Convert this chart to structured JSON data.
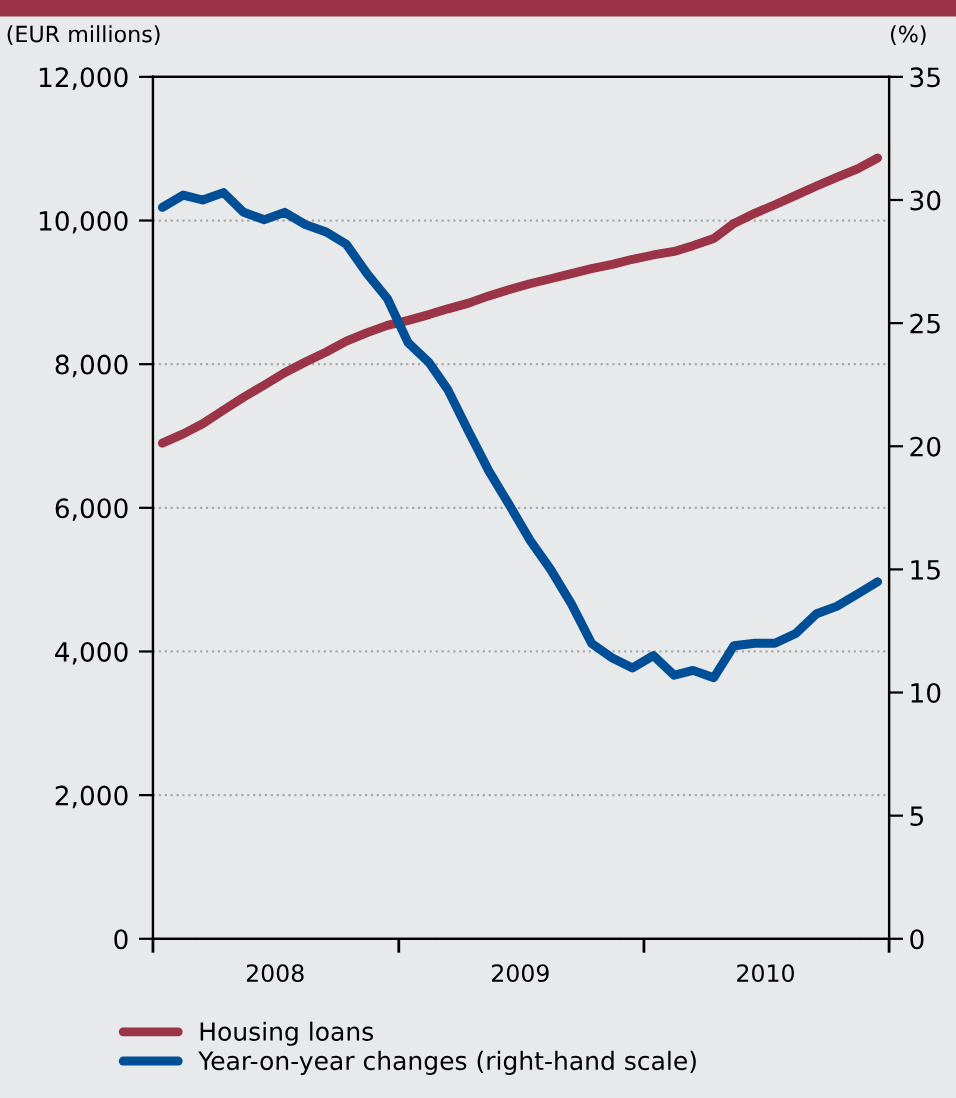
{
  "chart_data": {
    "type": "line",
    "ylabel": "(EUR millions)",
    "y2label": "(%)",
    "x": [
      "2008-01-15",
      "2008-02-15",
      "2008-03-15",
      "2008-04-15",
      "2008-05-15",
      "2008-06-15",
      "2008-07-15",
      "2008-08-15",
      "2008-09-15",
      "2008-10-15",
      "2008-11-15",
      "2008-12-15",
      "2009-01-15",
      "2009-02-15",
      "2009-03-15",
      "2009-04-15",
      "2009-05-15",
      "2009-06-15",
      "2009-07-15",
      "2009-08-15",
      "2009-09-15",
      "2009-10-15",
      "2009-11-15",
      "2009-12-15",
      "2010-01-15",
      "2010-02-15",
      "2010-03-15",
      "2010-04-15",
      "2010-05-15",
      "2010-06-15",
      "2010-07-15",
      "2010-08-15",
      "2010-09-15",
      "2010-10-15",
      "2010-11-15",
      "2010-12-15"
    ],
    "series": [
      {
        "name": "Housing loans",
        "color": "#9b3446",
        "values": [
          6900,
          7030,
          7170,
          7360,
          7540,
          7710,
          7880,
          8030,
          8170,
          8320,
          8440,
          8540,
          8610,
          8690,
          8770,
          8850,
          8950,
          9040,
          9120,
          9190,
          9260,
          9330,
          9390,
          9460,
          9520,
          9570,
          9650,
          9750,
          9960,
          10100,
          10220,
          10350,
          10480,
          10600,
          10720,
          10870
        ]
      },
      {
        "name": "Year-on-year changes (right-hand scale)",
        "color": "#004e96",
        "axis": "y2",
        "values": [
          29.7,
          30.2,
          30.0,
          30.3,
          29.5,
          29.2,
          29.5,
          29.0,
          28.7,
          28.2,
          27.0,
          26.0,
          24.2,
          23.4,
          22.3,
          20.6,
          19.0,
          17.6,
          16.2,
          15.0,
          13.6,
          12.0,
          11.4,
          11.0,
          11.5,
          10.7,
          10.9,
          10.6,
          11.9,
          12.0,
          12.0,
          12.4,
          13.2,
          13.5,
          14.0,
          14.5
        ]
      }
    ],
    "xlim": [
      "2008-01-01",
      "2011-01-01"
    ],
    "xticks": [
      {
        "value": "2008-01-01",
        "label": null
      },
      {
        "value": "2008-07-01",
        "label": "2008"
      },
      {
        "value": "2009-01-01",
        "label": null
      },
      {
        "value": "2009-07-01",
        "label": "2009"
      },
      {
        "value": "2010-01-01",
        "label": null
      },
      {
        "value": "2010-07-01",
        "label": "2010"
      },
      {
        "value": "2011-01-01",
        "label": null
      }
    ],
    "ylim": [
      0,
      12000
    ],
    "yticks": [
      {
        "value": 0,
        "label": "0"
      },
      {
        "value": 2000,
        "label": "2,000"
      },
      {
        "value": 4000,
        "label": "4,000"
      },
      {
        "value": 6000,
        "label": "6,000"
      },
      {
        "value": 8000,
        "label": "8,000"
      },
      {
        "value": 10000,
        "label": "10,000"
      },
      {
        "value": 12000,
        "label": "12,000"
      }
    ],
    "y2lim": [
      0,
      35
    ],
    "y2ticks": [
      0,
      5,
      10,
      15,
      20,
      25,
      30,
      35
    ],
    "grid": "y",
    "legend": "bottom",
    "marker": "none",
    "line_style": "solid"
  }
}
